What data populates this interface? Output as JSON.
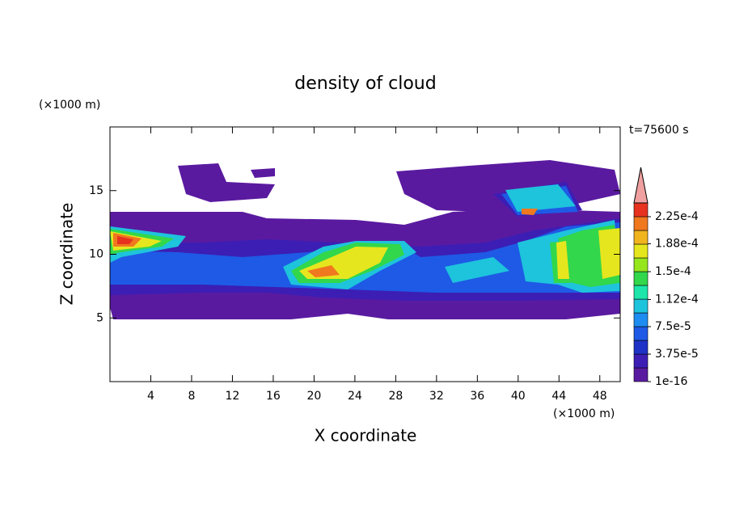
{
  "chart_data": {
    "type": "contour",
    "title": "density of cloud",
    "x_label": "X coordinate",
    "y_label": "Z coordinate",
    "x_unit_label": "(×1000 m)",
    "y_unit_label": "(×1000 m)",
    "annotation": "t=75600 s",
    "xlim": [
      0,
      50
    ],
    "xticks": [
      4,
      8,
      12,
      16,
      20,
      24,
      28,
      32,
      36,
      40,
      44,
      48
    ],
    "ylim": [
      0,
      20
    ],
    "yticks": [
      5,
      10,
      15
    ],
    "colorbar": {
      "clim": [
        1e-16,
        0.00024375
      ],
      "colors": [
        "#5a1aa0",
        "#3c1eb4",
        "#1e32c8",
        "#1e5ae6",
        "#1e8cf0",
        "#1ec3dc",
        "#1ee6aa",
        "#32d74b",
        "#96e61e",
        "#e6e61e",
        "#f0b41e",
        "#f0781e",
        "#e6321e"
      ],
      "extend_color": "#f0a0a0",
      "ticks": [
        {
          "value": 1e-16,
          "label": "1e-16"
        },
        {
          "value": 3.75e-05,
          "label": "3.75e-5"
        },
        {
          "value": 7.5e-05,
          "label": "7.5e-5"
        },
        {
          "value": 0.000112,
          "label": "1.12e-4"
        },
        {
          "value": 0.00015,
          "label": "1.5e-4"
        },
        {
          "value": 0.000188,
          "label": "1.88e-4"
        },
        {
          "value": 0.000225,
          "label": "2.25e-4"
        }
      ]
    }
  }
}
